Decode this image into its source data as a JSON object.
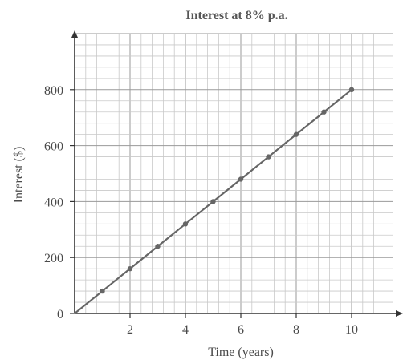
{
  "chart_data": {
    "type": "line",
    "title": "Interest at 8% p.a.",
    "xlabel": "Time (years)",
    "ylabel": "Interest ($)",
    "xlim": [
      0,
      12
    ],
    "ylim": [
      0,
      1000
    ],
    "x_ticks": [
      2,
      4,
      6,
      8,
      10
    ],
    "y_ticks": [
      0,
      200,
      400,
      600,
      800
    ],
    "x_tick_labels": [
      "2",
      "4",
      "6",
      "8",
      "10"
    ],
    "y_tick_labels": [
      "0",
      "200",
      "400",
      "600",
      "800"
    ],
    "grid": true,
    "legend": "none",
    "series": [
      {
        "x": [
          0,
          1,
          2,
          3,
          4,
          5,
          6,
          7,
          8,
          9,
          10
        ],
        "values": [
          0,
          80,
          160,
          240,
          320,
          400,
          480,
          560,
          640,
          720,
          800
        ],
        "color": "#666666"
      }
    ]
  }
}
